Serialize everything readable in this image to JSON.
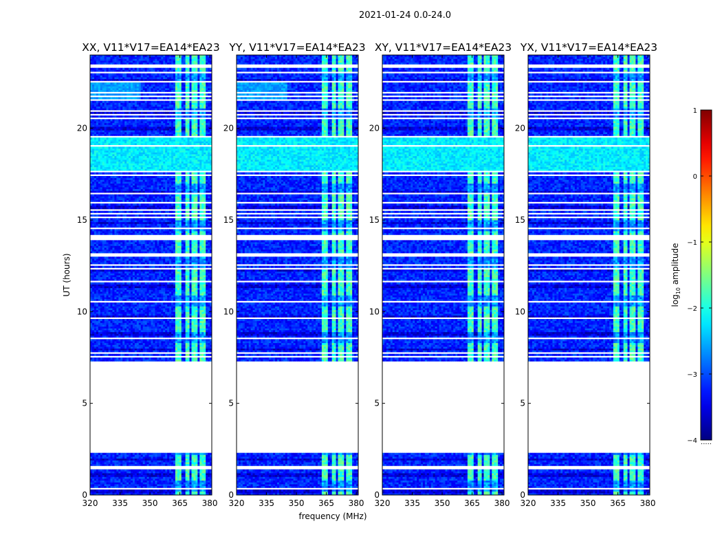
{
  "figure": {
    "suptitle": "2021-01-24 0.0-24.0",
    "colormap": "jet"
  },
  "chart_data": {
    "type": "heatmap",
    "suptitle": "2021-01-24 0.0-24.0",
    "xlabel": "frequency (MHz)",
    "ylabel": "UT (hours)",
    "xlim": [
      320,
      381
    ],
    "ylim": [
      0,
      24
    ],
    "xticks": [
      "320",
      "335",
      "350",
      "365",
      "380"
    ],
    "xtick_values": [
      320,
      335,
      350,
      365,
      380
    ],
    "yticks": [
      "0",
      "5",
      "10",
      "15",
      "20"
    ],
    "ytick_values": [
      0,
      5,
      10,
      15,
      20
    ],
    "panels": [
      {
        "title": "XX, V11*V17=EA14*EA23",
        "pol": "XX"
      },
      {
        "title": "YY, V11*V17=EA14*EA23",
        "pol": "YY"
      },
      {
        "title": "XY, V11*V17=EA14*EA23",
        "pol": "XY"
      },
      {
        "title": "YX, V11*V17=EA14*EA23",
        "pol": "YX"
      }
    ],
    "no_data_ut_ranges": [
      [
        2.3,
        7.2
      ],
      [
        13.95,
        14.2
      ],
      [
        19.5,
        19.62
      ],
      [
        23.3,
        23.5
      ],
      [
        23.0,
        23.1
      ]
    ],
    "flagged_ut_lines": [
      0.35,
      1.45,
      1.55,
      7.3,
      7.55,
      7.75,
      8.4,
      8.55,
      9.7,
      10.55,
      10.8,
      11.7,
      12.35,
      12.6,
      13.05,
      13.15,
      14.55,
      15.15,
      15.35,
      15.6,
      16.0,
      16.3,
      16.45,
      16.8,
      17.3,
      17.45,
      17.65,
      19.05,
      20.55,
      20.75,
      21.0,
      21.55,
      21.75,
      22.0,
      22.1,
      22.55
    ],
    "colorbar": {
      "label": "log10 amplitude",
      "label_prefix": "log",
      "label_sub": "10",
      "label_suffix": " amplitude",
      "vmin": -4,
      "vmax": 1,
      "ticks": [
        "−4",
        "−3",
        "−2",
        "−1",
        "0",
        "1"
      ],
      "tick_values": [
        -4,
        -3,
        -2,
        -1,
        0,
        1
      ],
      "extra_text": "....."
    },
    "features": {
      "rfi_band_mhz": [
        363,
        378
      ],
      "rfi_stripe_gaps_mhz": [
        366.7,
        370.3,
        374.3
      ],
      "rfi_level_log10": -1.8,
      "background_level_log10": -3.2,
      "bright_ut_band": [
        17.7,
        19.5
      ],
      "bright_ut_level_log10": -2.2,
      "xx_yy_low_freq_excess_ut": [
        21.5,
        22.6
      ]
    }
  }
}
